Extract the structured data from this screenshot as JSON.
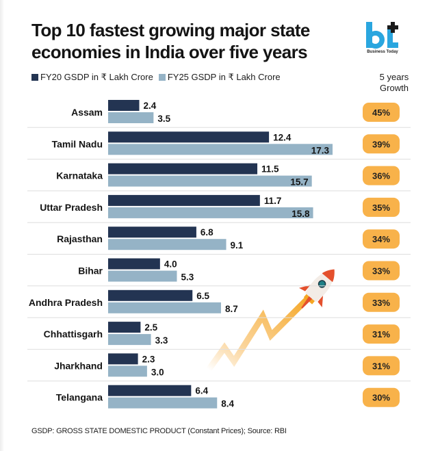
{
  "header": {
    "title_line1": "Top 10 fastest growing major state",
    "title_line2": "economies in India over five years",
    "logo_text": "bt",
    "logo_subtitle": "Business Today"
  },
  "legend": {
    "fy20": "FY20 GSDP in ₹ Lakh Crore",
    "fy25": "FY25 GSDP in ₹ Lakh Crore"
  },
  "growth_header": {
    "line1": "5 years",
    "line2": "Growth"
  },
  "colors": {
    "fy20": "#233452",
    "fy25": "#95b3c6",
    "growth_badge": "#f8b24a",
    "logo_blue": "#2aa6df"
  },
  "footnote": "GSDP: GROSS STATE DOMESTIC PRODUCT (Constant Prices); Source: RBI",
  "chart_data": {
    "type": "bar",
    "orientation": "horizontal",
    "title": "Top 10 fastest growing major state economies in India over five years",
    "xlabel": "",
    "ylabel": "",
    "xlim": [
      0,
      17.3
    ],
    "grid": false,
    "legend_position": "top-left",
    "categories": [
      "Assam",
      "Tamil Nadu",
      "Karnataka",
      "Uttar Pradesh",
      "Rajasthan",
      "Bihar",
      "Andhra Pradesh",
      "Chhattisgarh",
      "Jharkhand",
      "Telangana"
    ],
    "series": [
      {
        "name": "FY20 GSDP in ₹ Lakh Crore",
        "values": [
          2.4,
          12.4,
          11.5,
          11.7,
          6.8,
          4.0,
          6.5,
          2.5,
          2.3,
          6.4
        ],
        "labels": [
          "2.4",
          "12.4",
          "11.5",
          "11.7",
          "6.8",
          "4.0",
          "6.5",
          "2.5",
          "2.3",
          "6.4"
        ]
      },
      {
        "name": "FY25 GSDP in ₹ Lakh Crore",
        "values": [
          3.5,
          17.3,
          15.7,
          15.8,
          9.1,
          5.3,
          8.7,
          3.3,
          3.0,
          8.4
        ],
        "labels": [
          "3.5",
          "17.3",
          "15.7",
          "15.8",
          "9.1",
          "5.3",
          "8.7",
          "3.3",
          "3.0",
          "8.4"
        ]
      }
    ],
    "growth": [
      "45%",
      "39%",
      "36%",
      "35%",
      "34%",
      "33%",
      "33%",
      "31%",
      "31%",
      "30%"
    ],
    "annotations": [
      "Rocket illustration with rising zigzag trail"
    ]
  }
}
